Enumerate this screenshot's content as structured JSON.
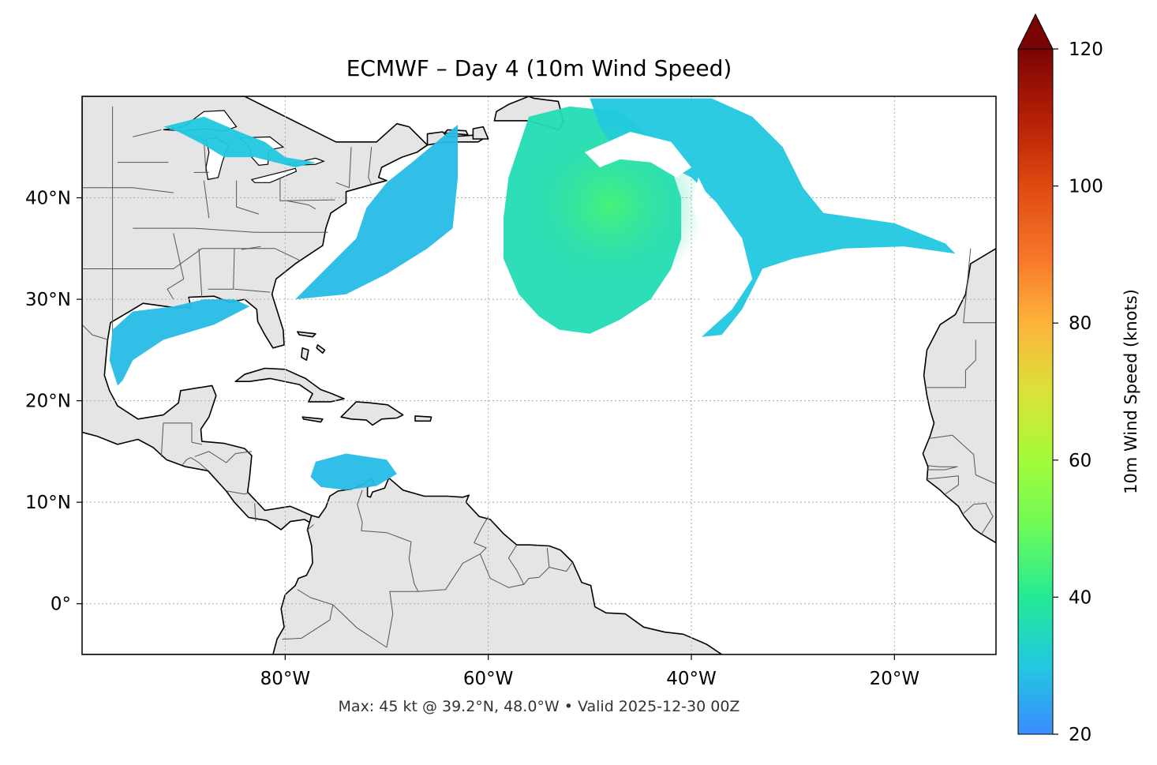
{
  "title": "ECMWF – Day 4 (10m Wind Speed)",
  "footer": "Max: 45 kt @ 39.2°N, 48.0°W • Valid 2025-12-30 00Z",
  "map": {
    "extent": {
      "lon_min": -100,
      "lon_max": -10,
      "lat_min": -5,
      "lat_max": 50
    },
    "land_color": "#e5e5e5",
    "ocean_color": "#ffffff",
    "coastline_color": "#000000",
    "border_color": "#555555",
    "gridlines": true,
    "lon_ticks": [
      {
        "value": -80,
        "label": "80°W"
      },
      {
        "value": -60,
        "label": "60°W"
      },
      {
        "value": -40,
        "label": "40°W"
      },
      {
        "value": -20,
        "label": "20°W"
      }
    ],
    "lat_ticks": [
      {
        "value": 40,
        "label": "40°N"
      },
      {
        "value": 30,
        "label": "30°N"
      },
      {
        "value": 20,
        "label": "20°N"
      },
      {
        "value": 10,
        "label": "10°N"
      },
      {
        "value": 0,
        "label": "0°"
      }
    ]
  },
  "colorbar": {
    "label": "10m Wind Speed (knots)",
    "min": 20,
    "max": 120,
    "extend": "max",
    "ticks": [
      {
        "value": 20,
        "label": "20"
      },
      {
        "value": 40,
        "label": "40"
      },
      {
        "value": 60,
        "label": "60"
      },
      {
        "value": 80,
        "label": "80"
      },
      {
        "value": 100,
        "label": "100"
      },
      {
        "value": 120,
        "label": "120"
      }
    ],
    "stops": [
      "#3b8cff",
      "#22c8e0",
      "#23ea96",
      "#6cfa5a",
      "#a4fb3a",
      "#dbe13a",
      "#fdb43a",
      "#f7742a",
      "#de4a10",
      "#b41e05",
      "#7a0403"
    ],
    "extend_color": "#7a0403"
  },
  "wind_regions": [
    {
      "name": "central-atlantic-storm",
      "speed": 36,
      "poly": [
        [
          -56,
          48
        ],
        [
          -52,
          49
        ],
        [
          -47,
          48.5
        ],
        [
          -44,
          46
        ],
        [
          -42,
          43
        ],
        [
          -41,
          40
        ],
        [
          -41,
          36
        ],
        [
          -42,
          33
        ],
        [
          -44,
          30
        ],
        [
          -47,
          28
        ],
        [
          -50,
          26.6
        ],
        [
          -53,
          27
        ],
        [
          -55,
          28.3
        ],
        [
          -57,
          30.5
        ],
        [
          -58.5,
          34
        ],
        [
          -58.5,
          38
        ],
        [
          -58,
          42
        ],
        [
          -57,
          45
        ]
      ]
    },
    {
      "name": "northeast-atlantic-band",
      "speed": 30,
      "poly": [
        [
          -50,
          49.8
        ],
        [
          -38,
          49.8
        ],
        [
          -34,
          48
        ],
        [
          -31,
          45
        ],
        [
          -29,
          41
        ],
        [
          -27,
          38.5
        ],
        [
          -20,
          37.5
        ],
        [
          -15,
          35.5
        ],
        [
          -14,
          34.5
        ],
        [
          -19,
          35.2
        ],
        [
          -25,
          35
        ],
        [
          -30,
          34
        ],
        [
          -33,
          33
        ],
        [
          -35,
          29
        ],
        [
          -37,
          26.5
        ],
        [
          -39,
          26.3
        ],
        [
          -36,
          29
        ],
        [
          -34,
          32
        ],
        [
          -35,
          36
        ],
        [
          -37.5,
          39.5
        ],
        [
          -40,
          42
        ],
        [
          -44,
          44
        ],
        [
          -48,
          45.5
        ],
        [
          -49,
          47
        ]
      ]
    },
    {
      "name": "us-east-coast-band",
      "speed": 28,
      "poly": [
        [
          -79,
          30
        ],
        [
          -76,
          33
        ],
        [
          -73,
          36
        ],
        [
          -72,
          39
        ],
        [
          -70,
          41.5
        ],
        [
          -67.5,
          43.5
        ],
        [
          -64.5,
          46
        ],
        [
          -63,
          47.2
        ],
        [
          -63,
          42
        ],
        [
          -63.5,
          37
        ],
        [
          -66,
          35
        ],
        [
          -70,
          32.5
        ],
        [
          -74,
          30.5
        ]
      ]
    },
    {
      "name": "gulf-of-mexico",
      "speed": 28,
      "poly": [
        [
          -96.5,
          21.5
        ],
        [
          -97.3,
          24
        ],
        [
          -97,
          27
        ],
        [
          -95,
          28.8
        ],
        [
          -91,
          29.3
        ],
        [
          -88,
          30
        ],
        [
          -85,
          30
        ],
        [
          -83.5,
          29.3
        ],
        [
          -87,
          27.5
        ],
        [
          -92,
          26
        ],
        [
          -95,
          24
        ],
        [
          -96,
          22
        ]
      ]
    },
    {
      "name": "southern-caribbean",
      "speed": 28,
      "poly": [
        [
          -77,
          14
        ],
        [
          -74,
          14.8
        ],
        [
          -70,
          14.2
        ],
        [
          -69,
          12.8
        ],
        [
          -71,
          11.6
        ],
        [
          -74,
          11.2
        ],
        [
          -76.5,
          11.5
        ],
        [
          -77.5,
          12.5
        ]
      ]
    },
    {
      "name": "great-lakes",
      "speed": 30,
      "poly": [
        [
          -92,
          47
        ],
        [
          -88,
          48
        ],
        [
          -84.5,
          46.5
        ],
        [
          -82,
          45.5
        ],
        [
          -80,
          44
        ],
        [
          -77,
          43.5
        ],
        [
          -79,
          43
        ],
        [
          -83,
          44
        ],
        [
          -86,
          44
        ],
        [
          -88,
          45.2
        ],
        [
          -90.5,
          46.5
        ]
      ]
    }
  ],
  "max_point": {
    "lon": -48.0,
    "lat": 39.2,
    "speed": 45
  }
}
